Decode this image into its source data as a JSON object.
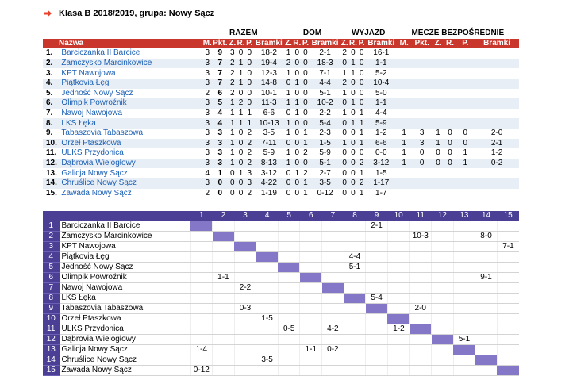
{
  "header": {
    "title": "Klasa B 2018/2019, grupa: Nowy Sącz"
  },
  "groups": {
    "total": "RAZEM",
    "home": "DOM",
    "away": "WYJAZD",
    "h2h": "MECZE BEZPOŚREDNIE"
  },
  "columns": {
    "name": "Nazwa",
    "m": "M.",
    "pts": "Pkt.",
    "z": "Z.",
    "r": "R.",
    "p": "P.",
    "goals": "Bramki",
    "h2h_m": "M.",
    "h2h_pts": "Pkt.",
    "h2h_z": "Z.",
    "h2h_r": "R.",
    "h2h_p": "P.",
    "h2h_goals": "Bramki"
  },
  "standings": [
    {
      "pos": "1.",
      "team": "Barciczanka II Barcice",
      "m": "3",
      "pts": "9",
      "z": "3",
      "r": "0",
      "p": "0",
      "goals": "18-2",
      "hz": "1",
      "hr": "0",
      "hp": "0",
      "hg": "2-1",
      "az": "2",
      "ar": "0",
      "ap": "0",
      "ag": "16-1",
      "bm": "",
      "bpts": "",
      "bz": "",
      "br": "",
      "bp": "",
      "bg": ""
    },
    {
      "pos": "2.",
      "team": "Zamczysko Marcinkowice",
      "m": "3",
      "pts": "7",
      "z": "2",
      "r": "1",
      "p": "0",
      "goals": "19-4",
      "hz": "2",
      "hr": "0",
      "hp": "0",
      "hg": "18-3",
      "az": "0",
      "ar": "1",
      "ap": "0",
      "ag": "1-1",
      "bm": "",
      "bpts": "",
      "bz": "",
      "br": "",
      "bp": "",
      "bg": ""
    },
    {
      "pos": "3.",
      "team": "KPT Nawojowa",
      "m": "3",
      "pts": "7",
      "z": "2",
      "r": "1",
      "p": "0",
      "goals": "12-3",
      "hz": "1",
      "hr": "0",
      "hp": "0",
      "hg": "7-1",
      "az": "1",
      "ar": "1",
      "ap": "0",
      "ag": "5-2",
      "bm": "",
      "bpts": "",
      "bz": "",
      "br": "",
      "bp": "",
      "bg": ""
    },
    {
      "pos": "4.",
      "team": "Piątkovia Łęg",
      "m": "3",
      "pts": "7",
      "z": "2",
      "r": "1",
      "p": "0",
      "goals": "14-8",
      "hz": "0",
      "hr": "1",
      "hp": "0",
      "hg": "4-4",
      "az": "2",
      "ar": "0",
      "ap": "0",
      "ag": "10-4",
      "bm": "",
      "bpts": "",
      "bz": "",
      "br": "",
      "bp": "",
      "bg": ""
    },
    {
      "pos": "5.",
      "team": "Jedność Nowy Sącz",
      "m": "2",
      "pts": "6",
      "z": "2",
      "r": "0",
      "p": "0",
      "goals": "10-1",
      "hz": "1",
      "hr": "0",
      "hp": "0",
      "hg": "5-1",
      "az": "1",
      "ar": "0",
      "ap": "0",
      "ag": "5-0",
      "bm": "",
      "bpts": "",
      "bz": "",
      "br": "",
      "bp": "",
      "bg": ""
    },
    {
      "pos": "6.",
      "team": "Olimpik Powroźnik",
      "m": "3",
      "pts": "5",
      "z": "1",
      "r": "2",
      "p": "0",
      "goals": "11-3",
      "hz": "1",
      "hr": "1",
      "hp": "0",
      "hg": "10-2",
      "az": "0",
      "ar": "1",
      "ap": "0",
      "ag": "1-1",
      "bm": "",
      "bpts": "",
      "bz": "",
      "br": "",
      "bp": "",
      "bg": ""
    },
    {
      "pos": "7.",
      "team": "Nawoj Nawojowa",
      "m": "3",
      "pts": "4",
      "z": "1",
      "r": "1",
      "p": "1",
      "goals": "6-6",
      "hz": "0",
      "hr": "1",
      "hp": "0",
      "hg": "2-2",
      "az": "1",
      "ar": "0",
      "ap": "1",
      "ag": "4-4",
      "bm": "",
      "bpts": "",
      "bz": "",
      "br": "",
      "bp": "",
      "bg": ""
    },
    {
      "pos": "8.",
      "team": "LKS Łęka",
      "m": "3",
      "pts": "4",
      "z": "1",
      "r": "1",
      "p": "1",
      "goals": "10-13",
      "hz": "1",
      "hr": "0",
      "hp": "0",
      "hg": "5-4",
      "az": "0",
      "ar": "1",
      "ap": "1",
      "ag": "5-9",
      "bm": "",
      "bpts": "",
      "bz": "",
      "br": "",
      "bp": "",
      "bg": ""
    },
    {
      "pos": "9.",
      "team": "Tabaszovia Tabaszowa",
      "m": "3",
      "pts": "3",
      "z": "1",
      "r": "0",
      "p": "2",
      "goals": "3-5",
      "hz": "1",
      "hr": "0",
      "hp": "1",
      "hg": "2-3",
      "az": "0",
      "ar": "0",
      "ap": "1",
      "ag": "1-2",
      "bm": "1",
      "bpts": "3",
      "bz": "1",
      "br": "0",
      "bp": "0",
      "bg": "2-0"
    },
    {
      "pos": "10.",
      "team": "Orzeł Ptaszkowa",
      "m": "3",
      "pts": "3",
      "z": "1",
      "r": "0",
      "p": "2",
      "goals": "7-11",
      "hz": "0",
      "hr": "0",
      "hp": "1",
      "hg": "1-5",
      "az": "1",
      "ar": "0",
      "ap": "1",
      "ag": "6-6",
      "bm": "1",
      "bpts": "3",
      "bz": "1",
      "br": "0",
      "bp": "0",
      "bg": "2-1"
    },
    {
      "pos": "11.",
      "team": "ULKS Przydonica",
      "m": "3",
      "pts": "3",
      "z": "1",
      "r": "0",
      "p": "2",
      "goals": "5-9",
      "hz": "1",
      "hr": "0",
      "hp": "2",
      "hg": "5-9",
      "az": "0",
      "ar": "0",
      "ap": "0",
      "ag": "0-0",
      "bm": "1",
      "bpts": "0",
      "bz": "0",
      "br": "0",
      "bp": "1",
      "bg": "1-2"
    },
    {
      "pos": "12.",
      "team": "Dąbrovia Wielogłowy",
      "m": "3",
      "pts": "3",
      "z": "1",
      "r": "0",
      "p": "2",
      "goals": "8-13",
      "hz": "1",
      "hr": "0",
      "hp": "0",
      "hg": "5-1",
      "az": "0",
      "ar": "0",
      "ap": "2",
      "ag": "3-12",
      "bm": "1",
      "bpts": "0",
      "bz": "0",
      "br": "0",
      "bp": "1",
      "bg": "0-2"
    },
    {
      "pos": "13.",
      "team": "Galicja Nowy Sącz",
      "m": "4",
      "pts": "1",
      "z": "0",
      "r": "1",
      "p": "3",
      "goals": "3-12",
      "hz": "0",
      "hr": "1",
      "hp": "2",
      "hg": "2-7",
      "az": "0",
      "ar": "0",
      "ap": "1",
      "ag": "1-5",
      "bm": "",
      "bpts": "",
      "bz": "",
      "br": "",
      "bp": "",
      "bg": ""
    },
    {
      "pos": "14.",
      "team": "Chruślice Nowy Sącz",
      "m": "3",
      "pts": "0",
      "z": "0",
      "r": "0",
      "p": "3",
      "goals": "4-22",
      "hz": "0",
      "hr": "0",
      "hp": "1",
      "hg": "3-5",
      "az": "0",
      "ar": "0",
      "ap": "2",
      "ag": "1-17",
      "bm": "",
      "bpts": "",
      "bz": "",
      "br": "",
      "bp": "",
      "bg": ""
    },
    {
      "pos": "15.",
      "team": "Zawada Nowy Sącz",
      "m": "2",
      "pts": "0",
      "z": "0",
      "r": "0",
      "p": "2",
      "goals": "1-19",
      "hz": "0",
      "hr": "0",
      "hp": "1",
      "hg": "0-12",
      "az": "0",
      "ar": "0",
      "ap": "1",
      "ag": "1-7",
      "bm": "",
      "bpts": "",
      "bz": "",
      "br": "",
      "bp": "",
      "bg": ""
    }
  ],
  "matrix": {
    "col_numbers": [
      "1",
      "2",
      "3",
      "4",
      "5",
      "6",
      "7",
      "8",
      "9",
      "10",
      "11",
      "12",
      "13",
      "14",
      "15"
    ],
    "rows": [
      {
        "n": "1",
        "team": "Barciczanka II Barcice",
        "cells": [
          "",
          "",
          "",
          "",
          "",
          "",
          "",
          "",
          "2-1",
          "",
          "",
          "",
          "",
          "",
          ""
        ]
      },
      {
        "n": "2",
        "team": "Zamczysko Marcinkowice",
        "cells": [
          "",
          "",
          "",
          "",
          "",
          "",
          "",
          "",
          "",
          "",
          "10-3",
          "",
          "",
          "8-0",
          ""
        ]
      },
      {
        "n": "3",
        "team": "KPT Nawojowa",
        "cells": [
          "",
          "",
          "",
          "",
          "",
          "",
          "",
          "",
          "",
          "",
          "",
          "",
          "",
          "",
          "7-1"
        ]
      },
      {
        "n": "4",
        "team": "Piątkovia Łęg",
        "cells": [
          "",
          "",
          "",
          "",
          "",
          "",
          "",
          "4-4",
          "",
          "",
          "",
          "",
          "",
          "",
          ""
        ]
      },
      {
        "n": "5",
        "team": "Jedność Nowy Sącz",
        "cells": [
          "",
          "",
          "",
          "",
          "",
          "",
          "",
          "5-1",
          "",
          "",
          "",
          "",
          "",
          "",
          ""
        ]
      },
      {
        "n": "6",
        "team": "Olimpik Powroźnik",
        "cells": [
          "",
          "1-1",
          "",
          "",
          "",
          "",
          "",
          "",
          "",
          "",
          "",
          "",
          "",
          "9-1",
          ""
        ]
      },
      {
        "n": "7",
        "team": "Nawoj Nawojowa",
        "cells": [
          "",
          "",
          "2-2",
          "",
          "",
          "",
          "",
          "",
          "",
          "",
          "",
          "",
          "",
          "",
          ""
        ]
      },
      {
        "n": "8",
        "team": "LKS Łęka",
        "cells": [
          "",
          "",
          "",
          "",
          "",
          "",
          "",
          "",
          "5-4",
          "",
          "",
          "",
          "",
          "",
          ""
        ]
      },
      {
        "n": "9",
        "team": "Tabaszovia Tabaszowa",
        "cells": [
          "",
          "",
          "0-3",
          "",
          "",
          "",
          "",
          "",
          "",
          "",
          "2-0",
          "",
          "",
          "",
          ""
        ]
      },
      {
        "n": "10",
        "team": "Orzeł Ptaszkowa",
        "cells": [
          "",
          "",
          "",
          "1-5",
          "",
          "",
          "",
          "",
          "",
          "",
          "",
          "",
          "",
          "",
          ""
        ]
      },
      {
        "n": "11",
        "team": "ULKS Przydonica",
        "cells": [
          "",
          "",
          "",
          "",
          "0-5",
          "",
          "4-2",
          "",
          "",
          "1-2",
          "",
          "",
          "",
          "",
          ""
        ]
      },
      {
        "n": "12",
        "team": "Dąbrovia Wielogłowy",
        "cells": [
          "",
          "",
          "",
          "",
          "",
          "",
          "",
          "",
          "",
          "",
          "",
          "",
          "5-1",
          "",
          ""
        ]
      },
      {
        "n": "13",
        "team": "Galicja Nowy Sącz",
        "cells": [
          "1-4",
          "",
          "",
          "",
          "",
          "1-1",
          "0-2",
          "",
          "",
          "",
          "",
          "",
          "",
          "",
          ""
        ]
      },
      {
        "n": "14",
        "team": "Chruślice Nowy Sącz",
        "cells": [
          "",
          "",
          "",
          "3-5",
          "",
          "",
          "",
          "",
          "",
          "",
          "",
          "",
          "",
          "",
          ""
        ]
      },
      {
        "n": "15",
        "team": "Zawada Nowy Sącz",
        "cells": [
          "0-12",
          "",
          "",
          "",
          "",
          "",
          "",
          "",
          "",
          "",
          "",
          "",
          "",
          "",
          ""
        ]
      }
    ]
  },
  "icons": {
    "title_arrow": "arrow-right-icon"
  },
  "colors": {
    "header_red": "#c9372c",
    "matrix_purple": "#4a3f95",
    "diagonal": "#8577c8",
    "link_blue": "#1a5fb4",
    "arrow_red": "#e8412c"
  }
}
